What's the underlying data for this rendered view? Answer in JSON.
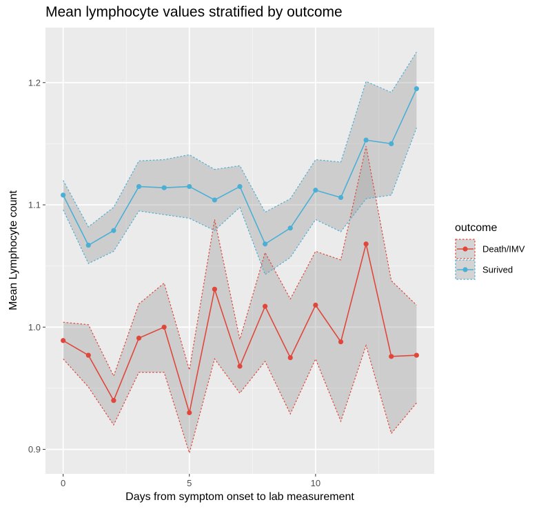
{
  "chart_data": {
    "type": "line",
    "title": "Mean lymphocyte values stratified by outcome",
    "xlabel": "Days from symptom onset to lab measurement",
    "ylabel": "Mean Lymphocyte count",
    "xlim": [
      -0.7,
      14.7
    ],
    "ylim": [
      0.88,
      1.245
    ],
    "x_ticks": [
      0,
      5,
      10
    ],
    "y_ticks": [
      0.9,
      1.0,
      1.1,
      1.2
    ],
    "x_tick_labels": [
      "0",
      "5",
      "10"
    ],
    "y_tick_labels": [
      "0.9",
      "1.0",
      "1.1",
      "1.2"
    ],
    "grid": true,
    "legend_position": "right",
    "legend_title": "outcome",
    "x": [
      0,
      1,
      2,
      3,
      4,
      5,
      6,
      7,
      8,
      9,
      10,
      11,
      12,
      13,
      14
    ],
    "series": [
      {
        "name": "Death/IMV",
        "color": "#E0463A",
        "values": [
          0.989,
          0.977,
          0.94,
          0.991,
          1.0,
          0.93,
          1.031,
          0.968,
          1.017,
          0.975,
          1.018,
          0.988,
          1.068,
          0.976,
          0.977
        ],
        "upper": [
          1.004,
          1.002,
          0.96,
          1.019,
          1.036,
          0.965,
          1.088,
          0.99,
          1.061,
          1.023,
          1.062,
          1.055,
          1.148,
          1.038,
          1.018
        ],
        "lower": [
          0.974,
          0.951,
          0.92,
          0.963,
          0.963,
          0.897,
          0.974,
          0.946,
          0.972,
          0.929,
          0.974,
          0.923,
          0.985,
          0.913,
          0.938
        ]
      },
      {
        "name": "Surived",
        "color": "#4AAFD5",
        "values": [
          1.108,
          1.067,
          1.079,
          1.115,
          1.114,
          1.115,
          1.104,
          1.115,
          1.068,
          1.081,
          1.112,
          1.106,
          1.153,
          1.15,
          1.195
        ],
        "upper": [
          1.12,
          1.082,
          1.098,
          1.136,
          1.137,
          1.141,
          1.129,
          1.132,
          1.094,
          1.105,
          1.137,
          1.135,
          1.201,
          1.192,
          1.225
        ],
        "lower": [
          1.096,
          1.052,
          1.062,
          1.095,
          1.092,
          1.089,
          1.079,
          1.098,
          1.043,
          1.057,
          1.088,
          1.078,
          1.105,
          1.108,
          1.163
        ]
      }
    ]
  }
}
